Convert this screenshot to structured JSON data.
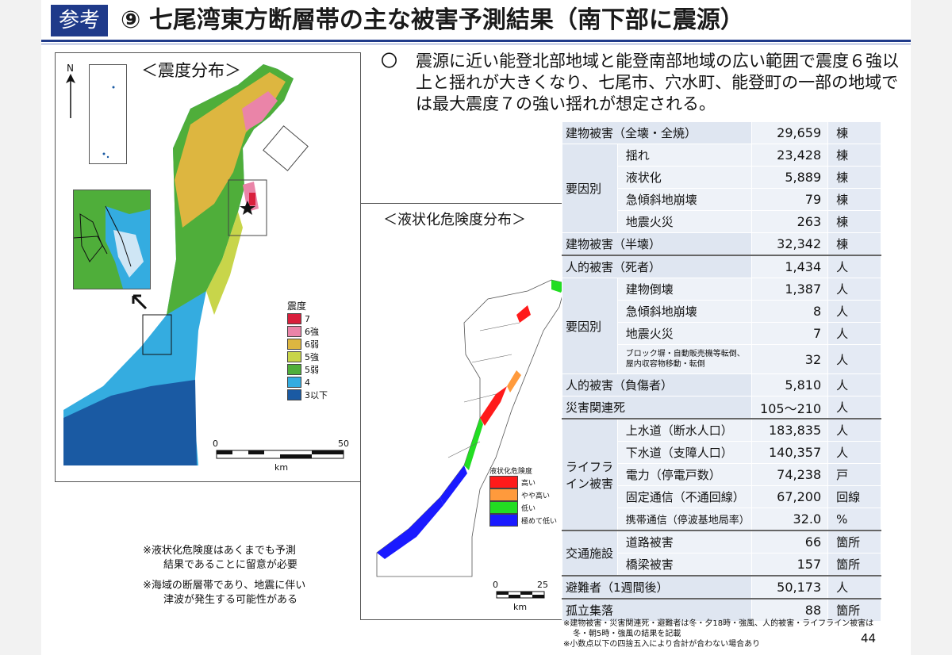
{
  "header": {
    "tag": "参考",
    "title": "⑨ 七尾湾東方断層帯の主な被害予測結果（南下部に震源）"
  },
  "left_map": {
    "title": "＜震度分布＞",
    "north": "N",
    "legend_title": "震度",
    "legend": [
      {
        "label": "7",
        "color": "#d91f3c"
      },
      {
        "label": "6強",
        "color": "#ea84a8"
      },
      {
        "label": "6弱",
        "color": "#ddb640"
      },
      {
        "label": "5強",
        "color": "#c8d54a"
      },
      {
        "label": "5弱",
        "color": "#4fae3a"
      },
      {
        "label": "4",
        "color": "#34ace0"
      },
      {
        "label": "3以下",
        "color": "#1a5aa3"
      }
    ],
    "scale_start": "0",
    "scale_end": "50",
    "scale_unit": "km"
  },
  "right_map": {
    "title": "＜液状化危険度分布＞",
    "legend_title": "液状化危険度",
    "legend": [
      {
        "label": "高い",
        "color": "#ff1a1a"
      },
      {
        "label": "やや高い",
        "color": "#ff9a3c"
      },
      {
        "label": "低い",
        "color": "#22dd22"
      },
      {
        "label": "極めて低い",
        "color": "#1a1aff"
      }
    ],
    "scale_start": "0",
    "scale_end": "25",
    "scale_unit": "km"
  },
  "notes": {
    "note1_line1": "※液状化危険度はあくまでも予測",
    "note1_line2": "結果であることに留意が必要",
    "note2_line1": "※海域の断層帯であり、地震に伴い",
    "note2_line2": "津波が発生する可能性がある"
  },
  "summary": {
    "mark": "〇",
    "text": "震源に近い能登北部地域と能登南部地域の広い範囲で震度６強以上と揺れが大きくなり、七尾市、穴水町、能登町の一部の地域では最大震度７の強い揺れが想定される。"
  },
  "table": {
    "building_total": {
      "label": "建物被害（全壊・全焼）",
      "value": "29,659",
      "unit": "棟"
    },
    "building_cause_label": "要因別",
    "building_causes": [
      {
        "label": "揺れ",
        "value": "23,428",
        "unit": "棟"
      },
      {
        "label": "液状化",
        "value": "5,889",
        "unit": "棟"
      },
      {
        "label": "急傾斜地崩壊",
        "value": "79",
        "unit": "棟"
      },
      {
        "label": "地震火災",
        "value": "263",
        "unit": "棟"
      }
    ],
    "building_half": {
      "label": "建物被害（半壊）",
      "value": "32,342",
      "unit": "棟"
    },
    "death_total": {
      "label": "人的被害（死者）",
      "value": "1,434",
      "unit": "人"
    },
    "death_cause_label": "要因別",
    "death_causes": [
      {
        "label": "建物倒壊",
        "value": "1,387",
        "unit": "人"
      },
      {
        "label": "急傾斜地崩壊",
        "value": "8",
        "unit": "人"
      },
      {
        "label": "地震火災",
        "value": "7",
        "unit": "人"
      },
      {
        "label": "ブロック塀・自動販売機等転倒、屋内収容物移動・転倒",
        "value": "32",
        "unit": "人"
      }
    ],
    "injured": {
      "label": "人的被害（負傷者）",
      "value": "5,810",
      "unit": "人"
    },
    "related_death": {
      "label": "災害関連死",
      "value": "105～210",
      "unit": "人"
    },
    "lifeline_label": "ライフライン被害",
    "lifeline": [
      {
        "label": "上水道（断水人口）",
        "value": "183,835",
        "unit": "人"
      },
      {
        "label": "下水道（支障人口）",
        "value": "140,357",
        "unit": "人"
      },
      {
        "label": "電力（停電戸数）",
        "value": "74,238",
        "unit": "戸"
      },
      {
        "label": "固定通信（不通回線）",
        "value": "67,200",
        "unit": "回線"
      },
      {
        "label": "携帯通信（停波基地局率）",
        "value": "32.0",
        "unit": "%"
      }
    ],
    "traffic_label": "交通施設",
    "traffic": [
      {
        "label": "道路被害",
        "value": "66",
        "unit": "箇所"
      },
      {
        "label": "橋梁被害",
        "value": "157",
        "unit": "箇所"
      }
    ],
    "evacuees": {
      "label": "避難者（1週間後）",
      "value": "50,173",
      "unit": "人"
    },
    "isolated": {
      "label": "孤立集落",
      "value": "88",
      "unit": "箇所"
    }
  },
  "footnotes": {
    "line1": "※建物被害・災害関連死・避難者は冬・夕18時・強風、人的被害・ライフライン被害は",
    "line2": "冬・朝5時・強風の結果を記載",
    "line3": "※小数点以下の四捨五入により合計が合わない場合あり"
  },
  "page_number": "44"
}
